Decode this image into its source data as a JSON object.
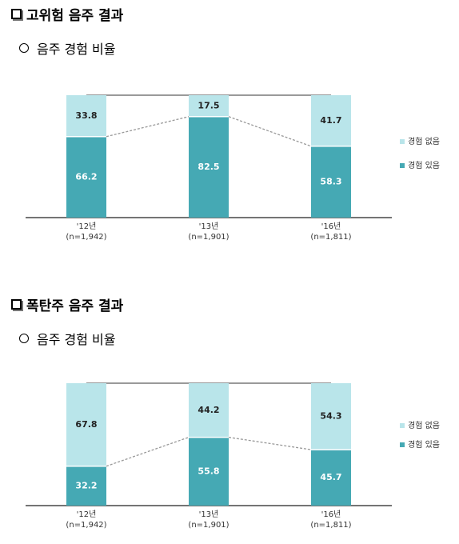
{
  "sections": [
    {
      "title": "고위험 음주 결과",
      "subtitle": "음주 경험 비율"
    },
    {
      "title": "폭탄주 음주 결과",
      "subtitle": "음주 경험 비율"
    }
  ],
  "colors": {
    "none": "#b9e5ea",
    "yes": "#45a9b4",
    "connector": "#999999",
    "top_line": "#9a9a9a"
  },
  "chart_data": [
    {
      "type": "bar",
      "stacked": true,
      "percent_stacked": true,
      "categories": [
        "'12년",
        "'13년",
        "'16년"
      ],
      "category_notes": [
        "(n=1,942)",
        "(n=1,901)",
        "(n=1,811)"
      ],
      "series": [
        {
          "name": "경험 있음",
          "values": [
            66.2,
            82.5,
            58.3
          ]
        },
        {
          "name": "경험 없음",
          "values": [
            33.8,
            17.5,
            41.7
          ]
        }
      ],
      "ylim": [
        0,
        100
      ],
      "legend_position": "right",
      "legend_items": [
        "경험 없음",
        "경험 있음"
      ]
    },
    {
      "type": "bar",
      "stacked": true,
      "percent_stacked": true,
      "categories": [
        "'12년",
        "'13년",
        "'16년"
      ],
      "category_notes": [
        "(n=1,942)",
        "(n=1,901)",
        "(n=1,811)"
      ],
      "series": [
        {
          "name": "경험 있음",
          "values": [
            32.2,
            55.8,
            45.7
          ]
        },
        {
          "name": "경험 없음",
          "values": [
            67.8,
            44.2,
            54.3
          ]
        }
      ],
      "ylim": [
        0,
        100
      ],
      "legend_position": "right",
      "legend_items": [
        "경험 없음",
        "경험 있음"
      ]
    }
  ]
}
